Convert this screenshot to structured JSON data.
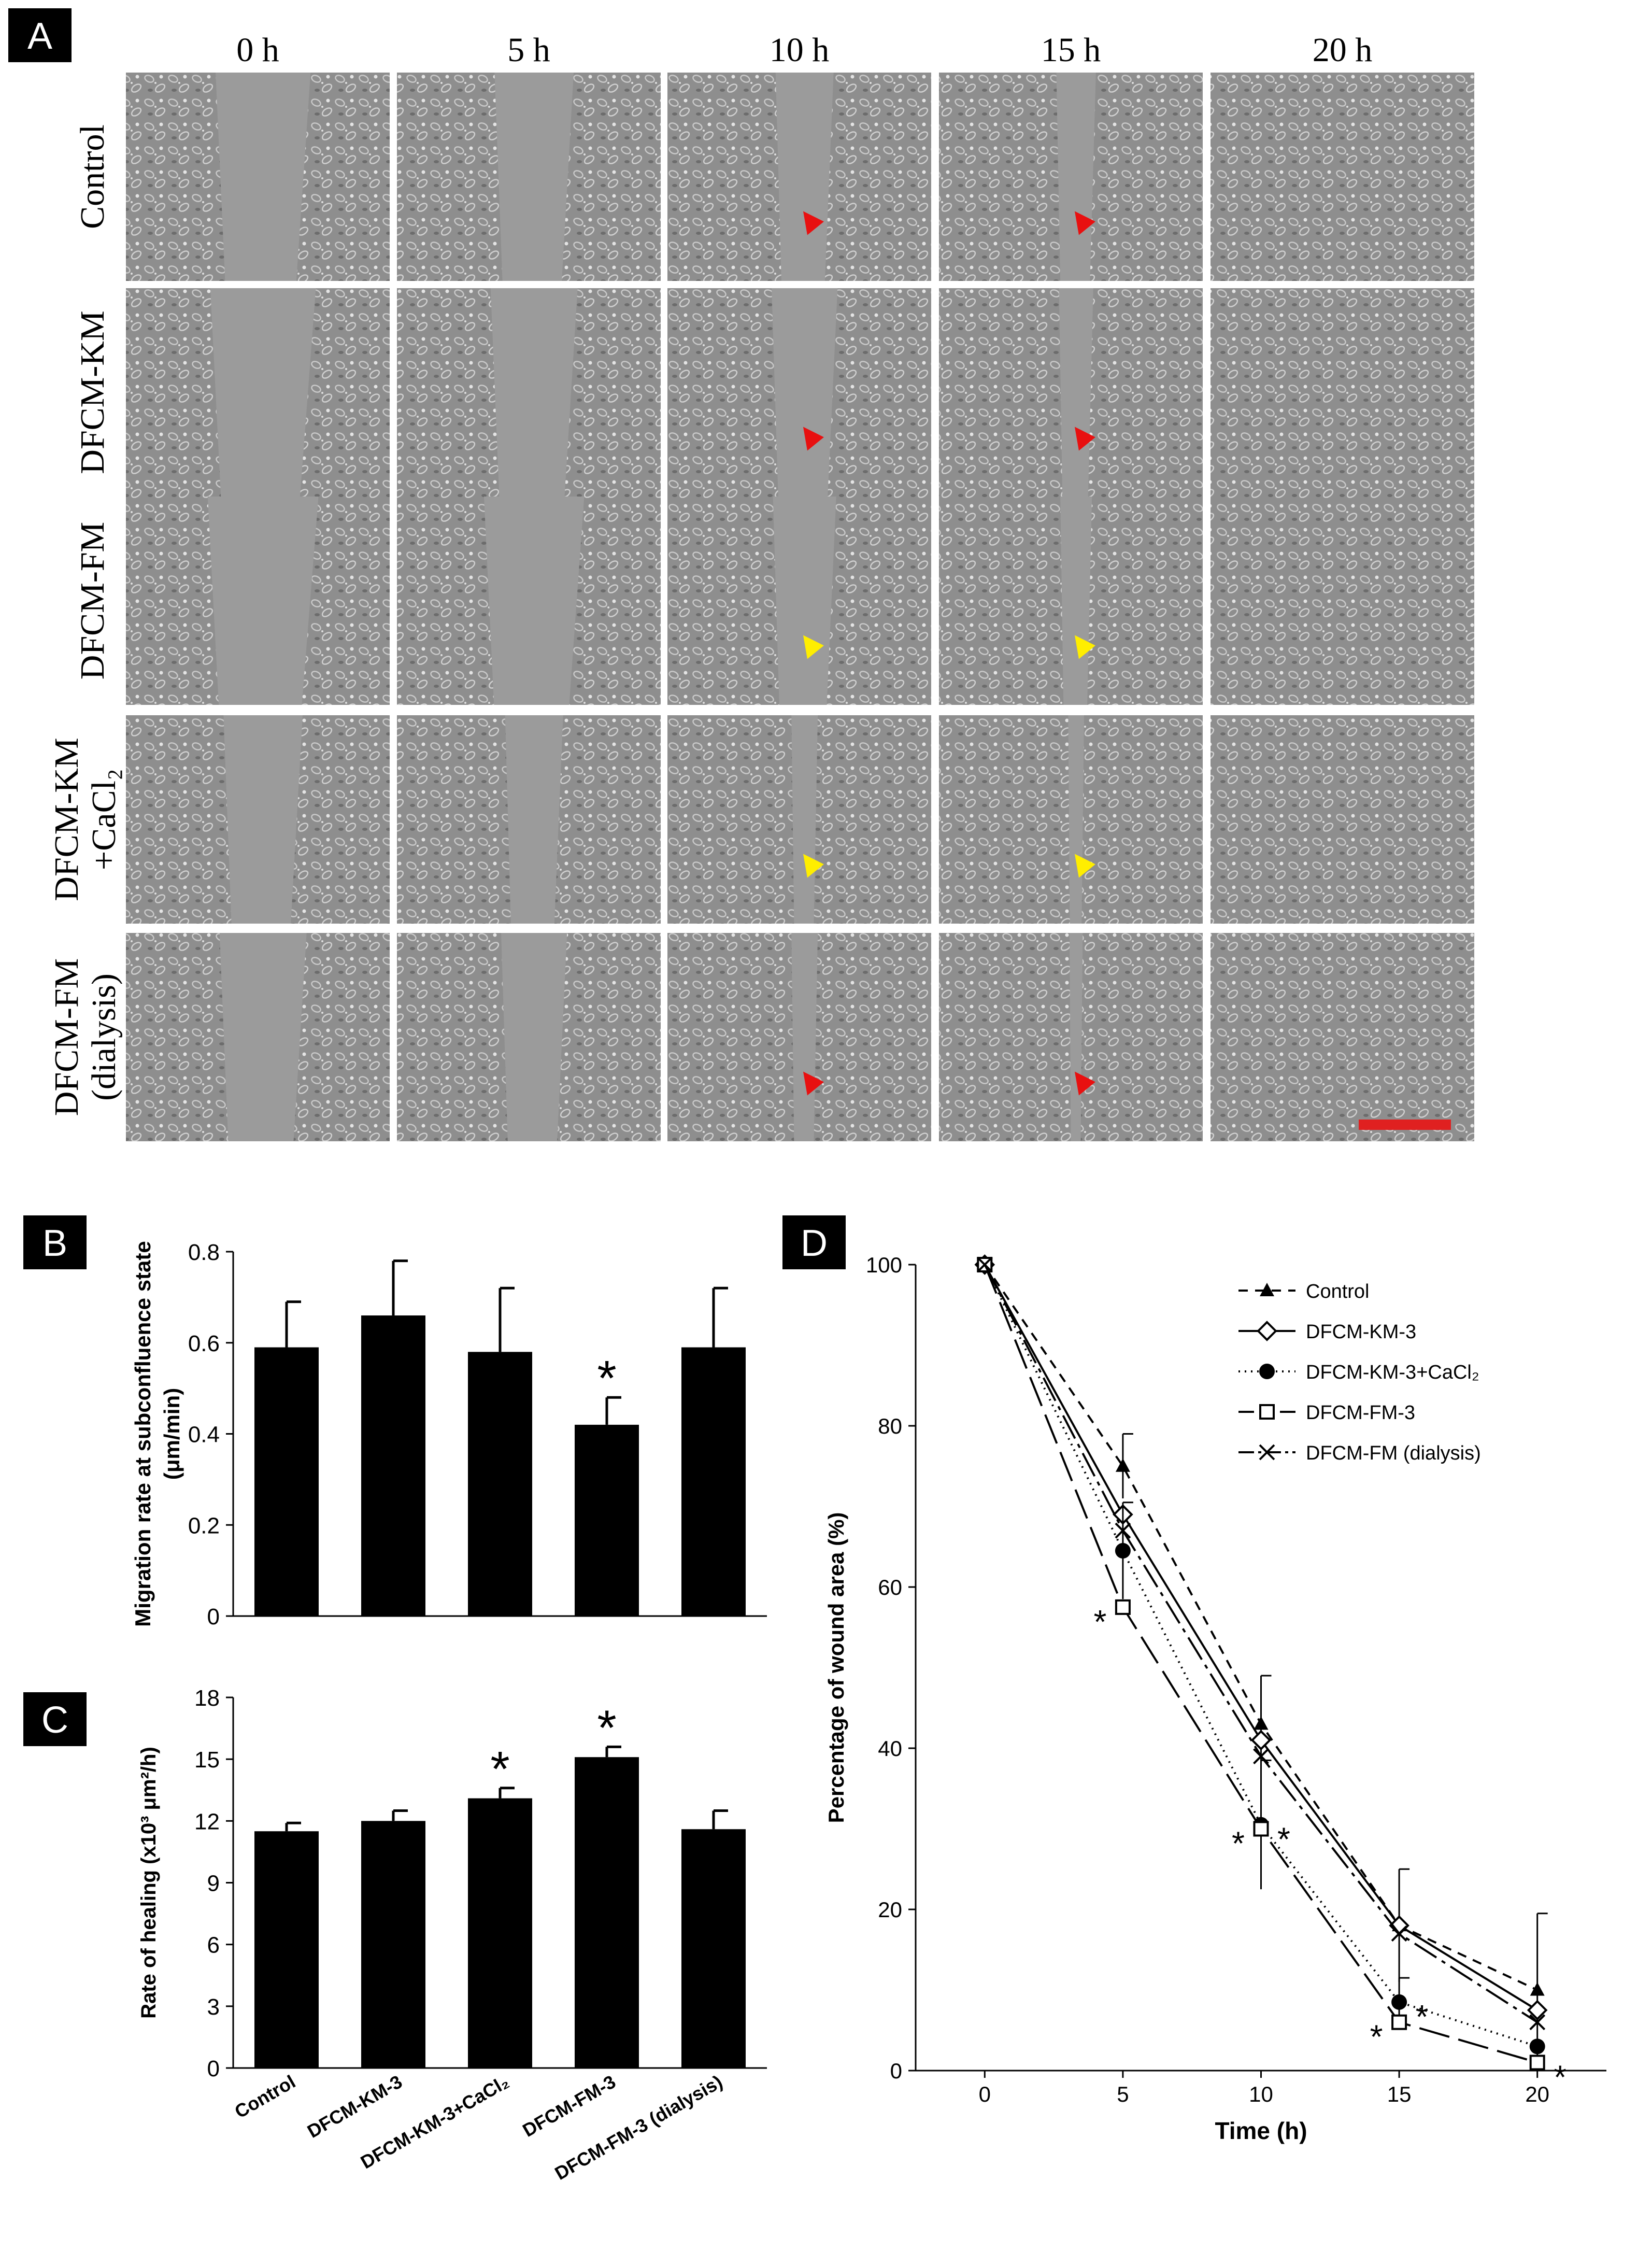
{
  "panels": {
    "A": {
      "label": "A",
      "time_headers": [
        "0 h",
        "5 h",
        "10 h",
        "15 h",
        "20 h"
      ],
      "row_labels": [
        [
          "Control"
        ],
        [
          "DFCM-KM"
        ],
        [
          "DFCM-FM"
        ],
        [
          "DFCM-KM",
          "+CaCl₂"
        ],
        [
          "DFCM-FM",
          "(dialysis)"
        ]
      ],
      "wound_open_fraction": [
        [
          0.36,
          0.3,
          0.22,
          0.15,
          0.0
        ],
        [
          0.4,
          0.33,
          0.25,
          0.13,
          0.0
        ],
        [
          0.42,
          0.38,
          0.24,
          0.12,
          0.0
        ],
        [
          0.3,
          0.22,
          0.1,
          0.06,
          0.0
        ],
        [
          0.33,
          0.25,
          0.1,
          0.05,
          0.0
        ]
      ],
      "arrowheads": [
        {
          "row": 0,
          "col": 2,
          "color": "red"
        },
        {
          "row": 0,
          "col": 3,
          "color": "red"
        },
        {
          "row": 1,
          "col": 2,
          "color": "red"
        },
        {
          "row": 1,
          "col": 3,
          "color": "red"
        },
        {
          "row": 2,
          "col": 2,
          "color": "yellow"
        },
        {
          "row": 2,
          "col": 3,
          "color": "yellow"
        },
        {
          "row": 3,
          "col": 2,
          "color": "yellow"
        },
        {
          "row": 3,
          "col": 3,
          "color": "yellow"
        },
        {
          "row": 4,
          "col": 2,
          "color": "red"
        },
        {
          "row": 4,
          "col": 3,
          "color": "red"
        }
      ],
      "scale_bar_color": "#e02020"
    },
    "B": {
      "label": "B"
    },
    "C": {
      "label": "C"
    },
    "D": {
      "label": "D"
    }
  },
  "colors": {
    "bar": "#000000",
    "red_marker": "#e81010",
    "yellow_marker": "#ffee00"
  },
  "chart_data": [
    {
      "id": "B",
      "type": "bar",
      "categories": [
        "Control",
        "DFCM-KM-3",
        "DFCM-KM-3+CaCl₂",
        "DFCM-FM-3",
        "DFCM-FM-3 (dialysis)"
      ],
      "values": [
        0.59,
        0.66,
        0.58,
        0.42,
        0.59
      ],
      "errors": [
        0.1,
        0.12,
        0.14,
        0.06,
        0.13
      ],
      "significant": [
        false,
        false,
        false,
        true,
        false
      ],
      "ylabel_lines": [
        "Migration rate at subconfluence state",
        "(μm/min)"
      ],
      "ylim": [
        0,
        0.8
      ],
      "yticks": [
        "0",
        "0.2",
        "0.4",
        "0.6",
        "0.8"
      ],
      "star": "*"
    },
    {
      "id": "C",
      "type": "bar",
      "categories": [
        "Control",
        "DFCM-KM-3",
        "DFCM-KM-3+CaCl₂",
        "DFCM-FM-3",
        "DFCM-FM-3 (dialysis)"
      ],
      "values": [
        11.5,
        12.0,
        13.1,
        15.1,
        11.6
      ],
      "errors": [
        0.4,
        0.5,
        0.5,
        0.5,
        0.9
      ],
      "significant": [
        false,
        false,
        true,
        true,
        false
      ],
      "ylabel": "Rate of healing (x10³ μm²/h)",
      "ylim": [
        0,
        18
      ],
      "yticks": [
        "0",
        "3",
        "6",
        "9",
        "12",
        "15",
        "18"
      ],
      "star": "*"
    },
    {
      "id": "D",
      "type": "line",
      "x": [
        0,
        5,
        10,
        15,
        20
      ],
      "xticks": [
        "0",
        "5",
        "10",
        "15",
        "20"
      ],
      "xlim": [
        -2.5,
        22.5
      ],
      "ylim": [
        0,
        100
      ],
      "yticks": [
        "0",
        "20",
        "40",
        "60",
        "80",
        "100"
      ],
      "xlabel": "Time (h)",
      "ylabel": "Percentage of wound area (%)",
      "legend_position": "top-right",
      "star": "*",
      "series": [
        {
          "name": "Control",
          "marker": "triangle",
          "dash": "18,14",
          "values": [
            100,
            75,
            43,
            18,
            10
          ],
          "errors": [
            0,
            4,
            6,
            7,
            9.5
          ]
        },
        {
          "name": "DFCM-KM-3",
          "marker": "diamond",
          "dash": "",
          "values": [
            100,
            69,
            41,
            18,
            7.5
          ],
          "errors": [
            0,
            0,
            0,
            0,
            0
          ]
        },
        {
          "name": "DFCM-KM-3+CaCl₂",
          "marker": "circle",
          "dash": "3,9",
          "values": [
            100,
            64.5,
            30.5,
            8.5,
            3
          ],
          "errors": [
            0,
            6,
            8,
            3,
            0
          ]
        },
        {
          "name": "DFCM-FM-3",
          "marker": "square",
          "dash": "60,18",
          "values": [
            100,
            57.5,
            30,
            6,
            1
          ],
          "errors": [
            0,
            0,
            0,
            0,
            0
          ]
        },
        {
          "name": "DFCM-FM (dialysis)",
          "marker": "x",
          "dash": "50,12,8,12",
          "values": [
            100,
            67,
            39,
            17,
            6
          ],
          "errors": [
            0,
            0,
            0,
            0,
            0
          ]
        }
      ],
      "stars": [
        {
          "x": 5,
          "series": 3,
          "side": "left"
        },
        {
          "x": 10,
          "series": 2,
          "side": "right"
        },
        {
          "x": 10,
          "series": 3,
          "side": "left"
        },
        {
          "x": 15,
          "series": 2,
          "side": "right"
        },
        {
          "x": 15,
          "series": 3,
          "side": "left"
        },
        {
          "x": 20,
          "series": 3,
          "side": "right"
        }
      ]
    }
  ]
}
